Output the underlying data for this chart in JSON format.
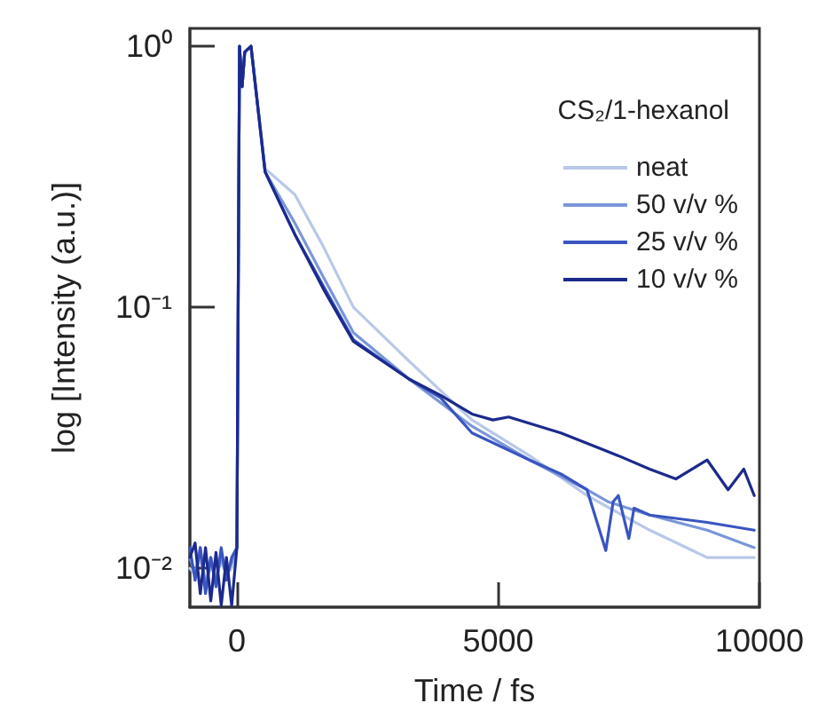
{
  "chart_data": {
    "type": "line",
    "xlabel": "Time / fs",
    "ylabel": "log [Intensity (a.u.)]",
    "legend_title": "CS₂/1-hexanol",
    "xlim": [
      -900,
      10000
    ],
    "xticks": [
      0,
      5000,
      10000
    ],
    "ylim": [
      0.0071,
      1.17
    ],
    "yticks": [
      {
        "value": 1,
        "label": "10⁰"
      },
      {
        "value": 0.1,
        "label": "10⁻¹"
      },
      {
        "value": 0.01,
        "label": "10⁻²"
      }
    ],
    "log": "y",
    "grid": false,
    "legend": "top right",
    "marker": "none",
    "line_style": "solid",
    "series": [
      {
        "name": "neat",
        "color": "#b8c8e8",
        "x": [
          -900,
          -800,
          -700,
          -600,
          -500,
          -400,
          -300,
          -200,
          -100,
          0,
          50,
          100,
          150,
          270,
          540,
          1110,
          1660,
          2230,
          3300,
          4500,
          5600,
          6700,
          7900,
          9000,
          9900
        ],
        "values": [
          0.01,
          0.0095,
          0.011,
          0.009,
          0.01,
          0.0095,
          0.0105,
          0.0095,
          0.01,
          0.012,
          1.0,
          0.7,
          0.95,
          1.0,
          0.34,
          0.27,
          0.17,
          0.1,
          0.062,
          0.037,
          0.027,
          0.019,
          0.014,
          0.011,
          0.011
        ]
      },
      {
        "name": "50 v/v %",
        "color": "#7b96d8",
        "x": [
          -900,
          -800,
          -700,
          -600,
          -500,
          -400,
          -300,
          -200,
          -100,
          0,
          50,
          100,
          150,
          270,
          540,
          1110,
          1660,
          2230,
          3300,
          4500,
          5600,
          6700,
          7100,
          7900,
          9000,
          9900
        ],
        "values": [
          0.011,
          0.0095,
          0.012,
          0.0085,
          0.011,
          0.009,
          0.011,
          0.0095,
          0.0105,
          0.012,
          1.0,
          0.7,
          0.95,
          1.0,
          0.33,
          0.21,
          0.13,
          0.08,
          0.053,
          0.035,
          0.026,
          0.02,
          0.018,
          0.016,
          0.014,
          0.012
        ]
      },
      {
        "name": "25 v/v %",
        "color": "#3a55c0",
        "x": [
          -900,
          -800,
          -700,
          -600,
          -500,
          -400,
          -300,
          -200,
          -100,
          0,
          50,
          100,
          150,
          270,
          540,
          1110,
          1660,
          2230,
          3300,
          3900,
          4500,
          5600,
          6200,
          6700,
          7060,
          7200,
          7300,
          7500,
          7600,
          7900,
          9000,
          9900
        ],
        "values": [
          0.012,
          0.009,
          0.012,
          0.008,
          0.011,
          0.0085,
          0.012,
          0.009,
          0.011,
          0.012,
          1.0,
          0.7,
          0.95,
          1.0,
          0.33,
          0.19,
          0.12,
          0.075,
          0.053,
          0.045,
          0.033,
          0.026,
          0.023,
          0.02,
          0.0117,
          0.018,
          0.019,
          0.013,
          0.017,
          0.016,
          0.015,
          0.014
        ]
      },
      {
        "name": "10 v/v %",
        "color": "#1c2a8c",
        "x": [
          -900,
          -800,
          -700,
          -600,
          -500,
          -400,
          -300,
          -200,
          -100,
          0,
          50,
          100,
          150,
          270,
          540,
          1110,
          1660,
          2230,
          3300,
          3900,
          4500,
          4900,
          5200,
          6200,
          7300,
          7900,
          8400,
          9000,
          9400,
          9700,
          9900
        ],
        "values": [
          0.011,
          0.0125,
          0.008,
          0.012,
          0.0075,
          0.0115,
          0.0072,
          0.011,
          0.0072,
          0.012,
          1.0,
          0.7,
          0.95,
          1.0,
          0.33,
          0.19,
          0.117,
          0.074,
          0.053,
          0.046,
          0.039,
          0.037,
          0.038,
          0.033,
          0.027,
          0.024,
          0.022,
          0.026,
          0.02,
          0.024,
          0.019
        ]
      }
    ]
  }
}
